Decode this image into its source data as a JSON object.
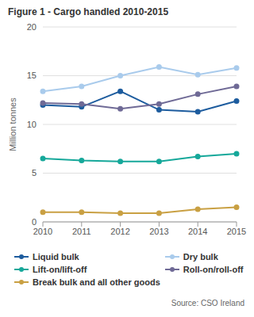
{
  "chart_data": {
    "type": "line",
    "title": "Figure 1 - Cargo handled 2010-2015",
    "y_label": "Million tonnes",
    "source": "Source: CSO Ireland",
    "categories": [
      "2010",
      "2011",
      "2012",
      "2013",
      "2014",
      "2015"
    ],
    "series": [
      {
        "name": "Liquid bulk",
        "color": "#1d5c9e",
        "values": [
          12.0,
          11.8,
          13.4,
          11.5,
          11.3,
          12.4
        ]
      },
      {
        "name": "Dry bulk",
        "color": "#a9cbec",
        "values": [
          13.4,
          13.9,
          15.0,
          15.9,
          15.1,
          15.8
        ]
      },
      {
        "name": "Lift-on/lift-off",
        "color": "#16a89a",
        "values": [
          6.5,
          6.3,
          6.2,
          6.2,
          6.7,
          7.0
        ]
      },
      {
        "name": "Roll-on/roll-off",
        "color": "#6f6a96",
        "values": [
          12.2,
          12.1,
          11.6,
          12.1,
          13.1,
          13.9
        ]
      },
      {
        "name": "Break bulk and all other goods",
        "color": "#c9a043",
        "values": [
          1.0,
          1.0,
          0.9,
          0.9,
          1.3,
          1.5
        ]
      }
    ],
    "ylim": [
      0,
      20
    ],
    "yticks": [
      0,
      5,
      10,
      15,
      20
    ],
    "grid": true,
    "legend": "bottom",
    "marker": "circle",
    "line_style": "solid"
  }
}
